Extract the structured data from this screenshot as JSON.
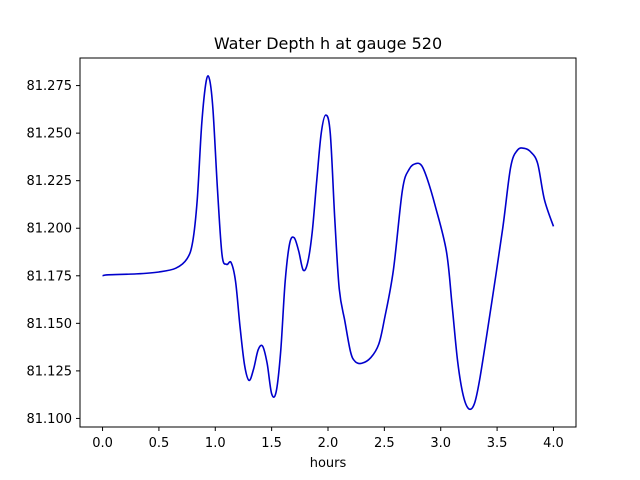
{
  "chart_data": {
    "type": "line",
    "title": "Water Depth h at gauge 520",
    "xlabel": "hours",
    "ylabel": "",
    "xlim": [
      -0.2,
      4.2
    ],
    "ylim": [
      81.0955,
      81.2895
    ],
    "xticks": [
      0.0,
      0.5,
      1.0,
      1.5,
      2.0,
      2.5,
      3.0,
      3.5,
      4.0
    ],
    "xtick_labels": [
      "0.0",
      "0.5",
      "1.0",
      "1.5",
      "2.0",
      "2.5",
      "3.0",
      "3.5",
      "4.0"
    ],
    "yticks": [
      81.1,
      81.125,
      81.15,
      81.175,
      81.2,
      81.225,
      81.25,
      81.275
    ],
    "ytick_labels": [
      "81.100",
      "81.125",
      "81.150",
      "81.175",
      "81.200",
      "81.225",
      "81.250",
      "81.275"
    ],
    "grid": false,
    "series": [
      {
        "color": "#0000cc",
        "x": [
          0.0,
          0.05,
          0.3,
          0.5,
          0.65,
          0.75,
          0.8,
          0.84,
          0.88,
          0.92,
          0.95,
          0.98,
          1.02,
          1.06,
          1.1,
          1.14,
          1.18,
          1.22,
          1.26,
          1.3,
          1.34,
          1.38,
          1.42,
          1.46,
          1.5,
          1.54,
          1.58,
          1.62,
          1.66,
          1.7,
          1.74,
          1.78,
          1.82,
          1.86,
          1.9,
          1.94,
          1.98,
          2.02,
          2.06,
          2.1,
          2.15,
          2.2,
          2.24,
          2.3,
          2.38,
          2.45,
          2.5,
          2.58,
          2.66,
          2.72,
          2.78,
          2.83,
          2.88,
          2.95,
          3.05,
          3.1,
          3.15,
          3.2,
          3.25,
          3.3,
          3.35,
          3.45,
          3.55,
          3.62,
          3.68,
          3.74,
          3.8,
          3.86,
          3.92,
          4.0
        ],
        "y": [
          81.175,
          81.1755,
          81.176,
          81.177,
          81.179,
          81.184,
          81.193,
          81.215,
          81.255,
          81.2775,
          81.278,
          81.262,
          81.22,
          81.186,
          81.181,
          81.182,
          81.172,
          81.148,
          81.128,
          81.12,
          81.126,
          81.136,
          81.138,
          81.129,
          81.113,
          81.114,
          81.135,
          81.172,
          81.192,
          81.195,
          81.188,
          81.178,
          81.182,
          81.198,
          81.225,
          81.25,
          81.2595,
          81.25,
          81.205,
          81.168,
          81.151,
          81.135,
          81.13,
          81.129,
          81.132,
          81.139,
          81.152,
          81.178,
          81.22,
          81.231,
          81.234,
          81.233,
          81.226,
          81.212,
          81.188,
          81.16,
          81.13,
          81.112,
          81.105,
          81.108,
          81.122,
          81.16,
          81.2,
          81.232,
          81.241,
          81.242,
          81.24,
          81.234,
          81.215,
          81.201
        ]
      }
    ]
  }
}
